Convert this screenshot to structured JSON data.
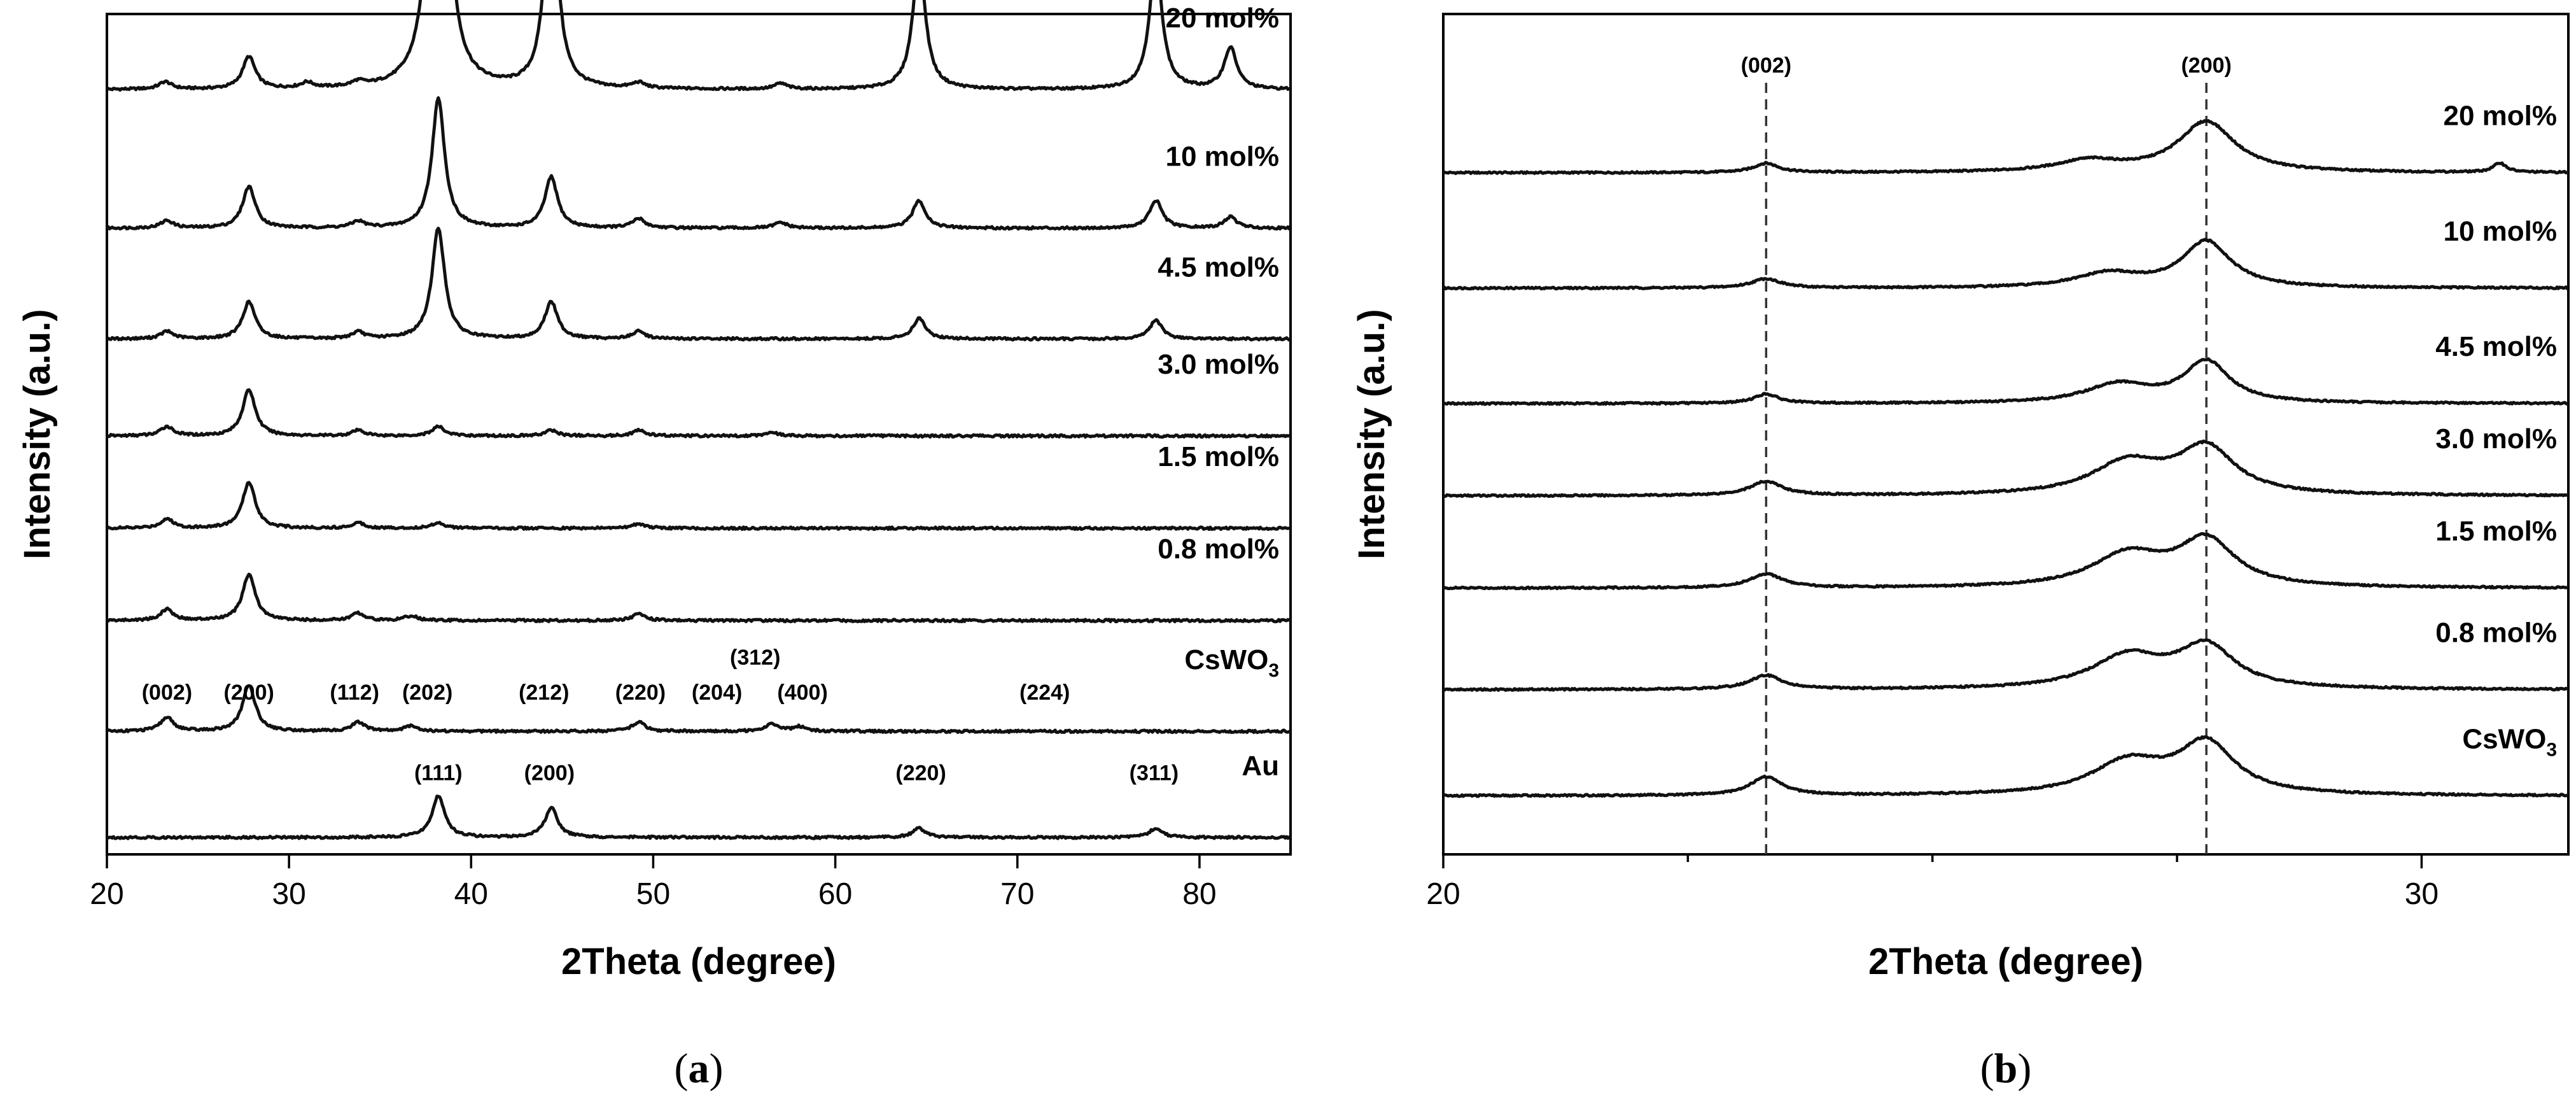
{
  "chart_data": [
    {
      "type": "line",
      "panel": "a",
      "caption": "a",
      "xlabel": "2Theta (degree)",
      "ylabel": "Intensity (a.u.)",
      "xlim": [
        20,
        85
      ],
      "xticks": [
        20,
        30,
        40,
        50,
        60,
        70,
        80
      ],
      "series": [
        {
          "name": "20 mol%",
          "label": "20 mol%",
          "baseline": 8.2,
          "peaks": [
            [
              23.2,
              0.08
            ],
            [
              27.8,
              0.35
            ],
            [
              31.0,
              0.06
            ],
            [
              33.8,
              0.05
            ],
            [
              38.2,
              6.3
            ],
            [
              44.4,
              2.3
            ],
            [
              49.2,
              0.06
            ],
            [
              57.0,
              0.06
            ],
            [
              64.6,
              1.4
            ],
            [
              77.6,
              1.4
            ],
            [
              81.7,
              0.45
            ]
          ]
        },
        {
          "name": "10 mol%",
          "label": "10 mol%",
          "baseline": 6.7,
          "peaks": [
            [
              23.3,
              0.08
            ],
            [
              27.8,
              0.45
            ],
            [
              33.8,
              0.07
            ],
            [
              38.2,
              1.4
            ],
            [
              44.4,
              0.55
            ],
            [
              49.2,
              0.1
            ],
            [
              57.0,
              0.06
            ],
            [
              64.6,
              0.3
            ],
            [
              77.6,
              0.3
            ],
            [
              81.7,
              0.12
            ]
          ]
        },
        {
          "name": "4.5 mol%",
          "label": "4.5 mol%",
          "baseline": 5.5,
          "peaks": [
            [
              23.3,
              0.08
            ],
            [
              27.8,
              0.4
            ],
            [
              33.8,
              0.07
            ],
            [
              38.2,
              1.2
            ],
            [
              44.4,
              0.4
            ],
            [
              49.2,
              0.08
            ],
            [
              64.6,
              0.22
            ],
            [
              77.6,
              0.2
            ]
          ]
        },
        {
          "name": "3.0 mol%",
          "label": "3.0 mol%",
          "baseline": 4.45,
          "peaks": [
            [
              23.3,
              0.1
            ],
            [
              27.8,
              0.5
            ],
            [
              33.8,
              0.06
            ],
            [
              38.2,
              0.1
            ],
            [
              44.4,
              0.06
            ],
            [
              49.2,
              0.06
            ],
            [
              56.5,
              0.04
            ]
          ]
        },
        {
          "name": "1.5 mol%",
          "label": "1.5 mol%",
          "baseline": 3.45,
          "peaks": [
            [
              23.3,
              0.1
            ],
            [
              27.8,
              0.5
            ],
            [
              33.8,
              0.06
            ],
            [
              38.2,
              0.06
            ],
            [
              49.2,
              0.05
            ]
          ]
        },
        {
          "name": "0.8 mol%",
          "label": "0.8 mol%",
          "baseline": 2.45,
          "peaks": [
            [
              23.3,
              0.12
            ],
            [
              27.8,
              0.5
            ],
            [
              33.8,
              0.08
            ],
            [
              36.7,
              0.05
            ],
            [
              49.2,
              0.07
            ]
          ]
        },
        {
          "name": "CsWO3",
          "label": "CsWO",
          "label_sub": "3",
          "baseline": 1.25,
          "peaks": [
            [
              23.3,
              0.15
            ],
            [
              27.8,
              0.5
            ],
            [
              33.8,
              0.1
            ],
            [
              36.7,
              0.06
            ],
            [
              49.2,
              0.1
            ],
            [
              56.5,
              0.08
            ],
            [
              58.0,
              0.05
            ]
          ]
        },
        {
          "name": "Au",
          "label": "Au",
          "baseline": 0.1,
          "peaks": [
            [
              38.2,
              0.45
            ],
            [
              44.4,
              0.32
            ],
            [
              64.6,
              0.1
            ],
            [
              77.6,
              0.1
            ]
          ]
        }
      ],
      "hkl_labels_cswo3": [
        {
          "text": "(002)",
          "x": 23.3
        },
        {
          "text": "(200)",
          "x": 27.8
        },
        {
          "text": "(112)",
          "x": 33.6
        },
        {
          "text": "(202)",
          "x": 37.6
        },
        {
          "text": "(212)",
          "x": 44.0
        },
        {
          "text": "(220)",
          "x": 49.3
        },
        {
          "text": "(204)",
          "x": 53.5
        },
        {
          "text": "(312)",
          "x": 55.6
        },
        {
          "text": "(400)",
          "x": 58.2
        },
        {
          "text": "(224)",
          "x": 71.5
        }
      ],
      "hkl_labels_au": [
        {
          "text": "(111)",
          "x": 38.2
        },
        {
          "text": "(200)",
          "x": 44.3
        },
        {
          "text": "(220)",
          "x": 64.7
        },
        {
          "text": "(311)",
          "x": 77.5
        }
      ]
    },
    {
      "type": "line",
      "panel": "b",
      "caption": "b",
      "xlabel": "2Theta (degree)",
      "ylabel": "Intensity (a.u.)",
      "xlim": [
        20,
        31.5
      ],
      "xticks": [
        20,
        30
      ],
      "minor_xticks": [
        22.5,
        25,
        27.5
      ],
      "reference_lines": [
        {
          "text": "(002)",
          "x": 23.3
        },
        {
          "text": "(200)",
          "x": 27.8
        }
      ],
      "series": [
        {
          "name": "20 mol%",
          "label": "20 mol%",
          "baseline": 7.3,
          "peaks": [
            [
              23.3,
              0.1,
              0.15
            ],
            [
              26.6,
              0.12,
              0.4
            ],
            [
              27.8,
              0.55,
              0.35
            ],
            [
              30.8,
              0.1,
              0.08
            ]
          ]
        },
        {
          "name": "10 mol%",
          "label": "10 mol%",
          "baseline": 6.05,
          "peaks": [
            [
              23.3,
              0.1,
              0.18
            ],
            [
              26.8,
              0.15,
              0.4
            ],
            [
              27.8,
              0.5,
              0.3
            ]
          ]
        },
        {
          "name": "4.5 mol%",
          "label": "4.5 mol%",
          "baseline": 4.8,
          "peaks": [
            [
              23.3,
              0.1,
              0.15
            ],
            [
              26.9,
              0.2,
              0.4
            ],
            [
              27.8,
              0.45,
              0.28
            ]
          ]
        },
        {
          "name": "3.0 mol%",
          "label": "3.0 mol%",
          "baseline": 3.8,
          "peaks": [
            [
              23.3,
              0.15,
              0.2
            ],
            [
              27.0,
              0.35,
              0.45
            ],
            [
              27.8,
              0.5,
              0.35
            ]
          ]
        },
        {
          "name": "1.5 mol%",
          "label": "1.5 mol%",
          "baseline": 2.8,
          "peaks": [
            [
              23.3,
              0.15,
              0.2
            ],
            [
              27.0,
              0.35,
              0.45
            ],
            [
              27.8,
              0.5,
              0.35
            ]
          ]
        },
        {
          "name": "0.8 mol%",
          "label": "0.8 mol%",
          "baseline": 1.7,
          "peaks": [
            [
              23.3,
              0.15,
              0.2
            ],
            [
              27.0,
              0.35,
              0.45
            ],
            [
              27.8,
              0.45,
              0.35
            ]
          ]
        },
        {
          "name": "CsWO3",
          "label": "CsWO",
          "label_sub": "3",
          "baseline": 0.55,
          "peaks": [
            [
              23.3,
              0.2,
              0.2
            ],
            [
              27.0,
              0.35,
              0.45
            ],
            [
              27.8,
              0.55,
              0.35
            ]
          ]
        }
      ]
    }
  ]
}
